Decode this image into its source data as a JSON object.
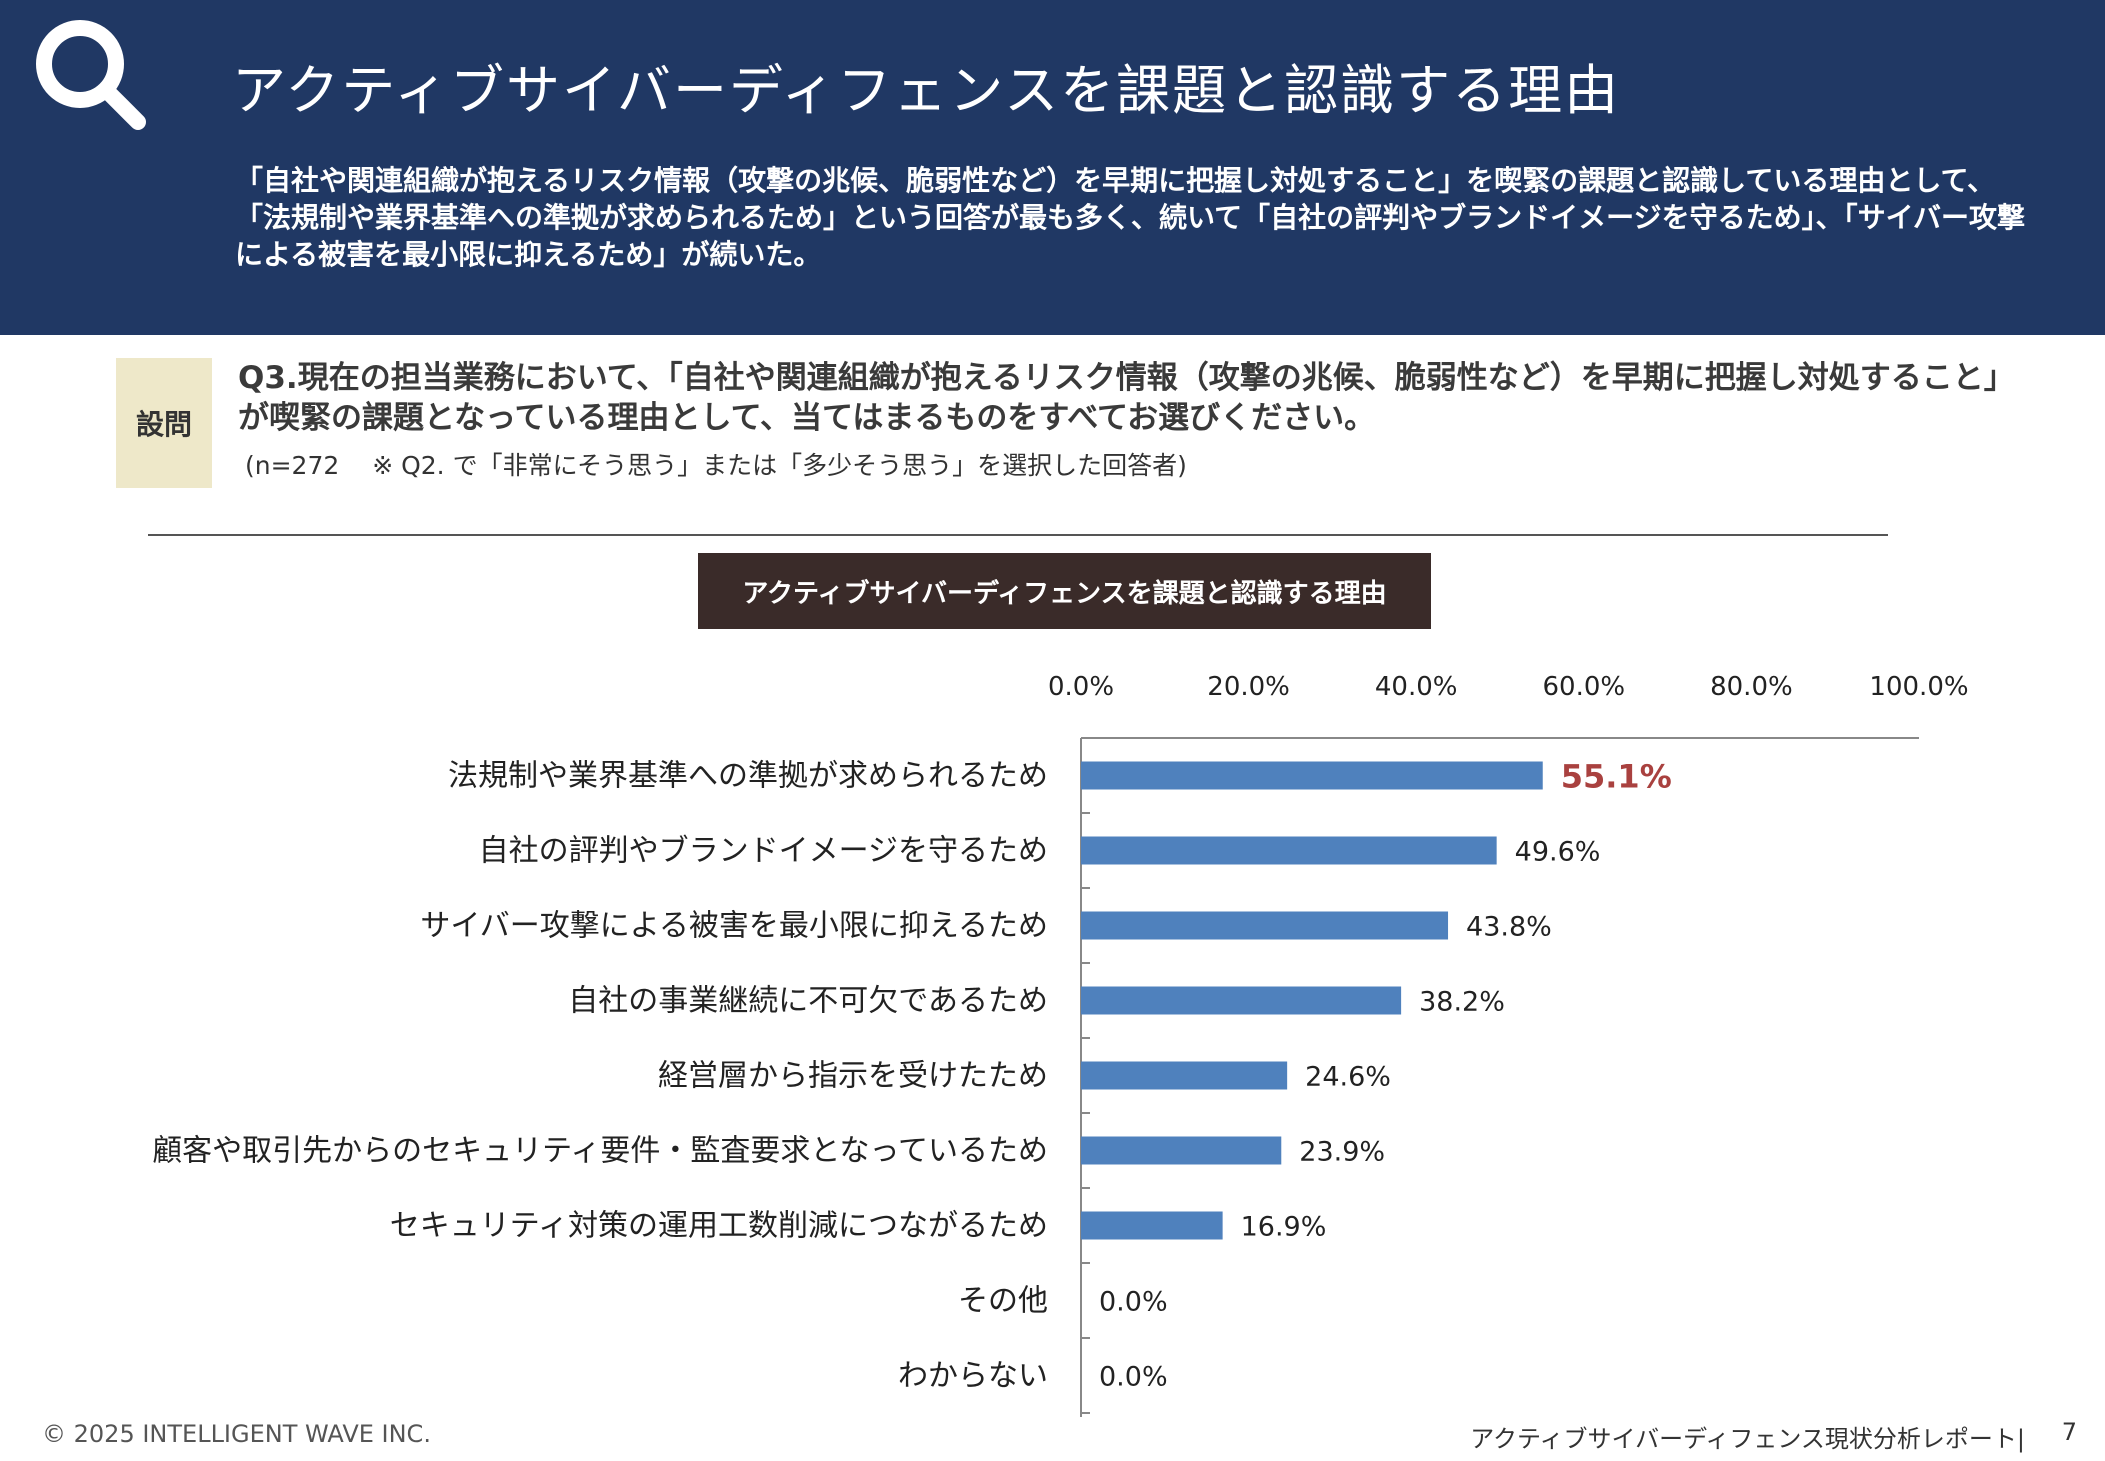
{
  "header": {
    "title": "アクティブサイバーディフェンスを課題と認識する理由",
    "summary": "「自社や関連組織が抱えるリスク情報（攻撃の兆候、脆弱性など）を早期に把握し対処すること」を喫緊の課題と認識している理由として、「法規制や業界基準への準拠が求められるため」という回答が最も多く、続いて「自社の評判やブランドイメージを守るため」、「サイバー攻撃による被害を最小限に抑えるため」が続いた。"
  },
  "question": {
    "badge": "設問",
    "text": "Q3.現在の担当業務において、「自社や関連組織が抱えるリスク情報（攻撃の兆候、脆弱性など）を早期に把握し対処すること」が喫緊の課題となっている理由として、当てはまるものをすべてお選びください。",
    "note": "(n=272　 ※ Q2. で「非常にそう思う」または「多少そう思う」を選択した回答者)"
  },
  "chart_data": {
    "type": "bar",
    "orientation": "horizontal",
    "title": "アクティブサイバーディフェンスを課題と認識する理由",
    "categories": [
      "法規制や業界基準への準拠が求められるため",
      "自社の評判やブランドイメージを守るため",
      "サイバー攻撃による被害を最小限に抑えるため",
      "自社の事業継続に不可欠であるため",
      "経営層から指示を受けたため",
      "顧客や取引先からのセキュリティ要件・監査要求となっているため",
      "セキュリティ対策の運用工数削減につながるため",
      "その他",
      "わからない"
    ],
    "values": [
      55.1,
      49.6,
      43.8,
      38.2,
      24.6,
      23.9,
      16.9,
      0.0,
      0.0
    ],
    "value_labels": [
      "55.1%",
      "49.6%",
      "43.8%",
      "38.2%",
      "24.6%",
      "23.9%",
      "16.9%",
      "0.0%",
      "0.0%"
    ],
    "xlim": [
      0,
      100
    ],
    "xticks": [
      "0.0%",
      "20.0%",
      "40.0%",
      "60.0%",
      "80.0%",
      "100.0%"
    ],
    "axis_position": "top",
    "grid": false,
    "bar_color": "#4f81bd",
    "highlight_color": "#a9413f",
    "highlight_index": 0
  },
  "footer": {
    "copyright": "© 2025 INTELLIGENT WAVE INC.",
    "report_name": "アクティブサイバーディフェンス現状分析レポート|",
    "page": "7"
  }
}
